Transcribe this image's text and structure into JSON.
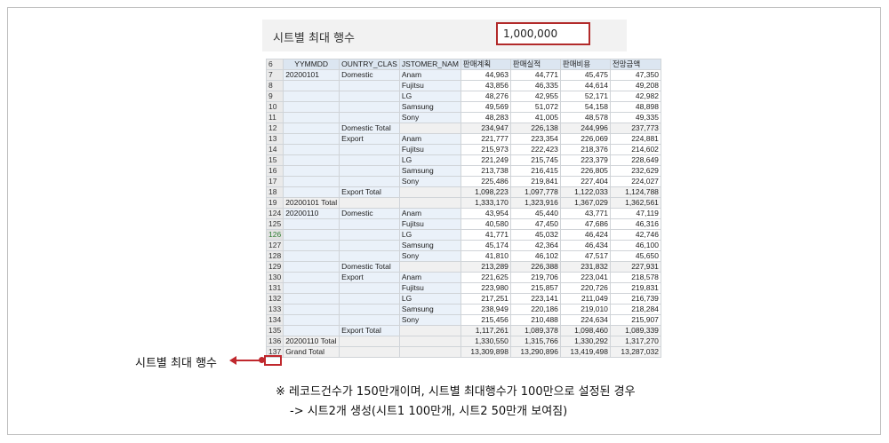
{
  "setting": {
    "label": "시트별 최대 행수",
    "value": "1,000,000"
  },
  "sheet": {
    "headers": {
      "row": "6",
      "c1": "YYMMDD",
      "c2": "OUNTRY_CLAS",
      "c3": "JSTOMER_NAM",
      "c4": "판매계획",
      "c5": "판매실적",
      "c6": "판매비용",
      "c7": "전망금액"
    },
    "rows": [
      {
        "rn": "7",
        "c1": "20200101",
        "c2": "Domestic",
        "c3": "Anam",
        "v": [
          "44,963",
          "44,771",
          "45,475",
          "47,350"
        ]
      },
      {
        "rn": "8",
        "c1": "",
        "c2": "",
        "c3": "Fujitsu",
        "v": [
          "43,856",
          "46,335",
          "44,614",
          "49,208"
        ]
      },
      {
        "rn": "9",
        "c1": "",
        "c2": "",
        "c3": "LG",
        "v": [
          "48,276",
          "42,955",
          "52,171",
          "42,982"
        ]
      },
      {
        "rn": "10",
        "c1": "",
        "c2": "",
        "c3": "Samsung",
        "v": [
          "49,569",
          "51,072",
          "54,158",
          "48,898"
        ]
      },
      {
        "rn": "11",
        "c1": "",
        "c2": "",
        "c3": "Sony",
        "v": [
          "48,283",
          "41,005",
          "48,578",
          "49,335"
        ]
      },
      {
        "rn": "12",
        "c1": "",
        "c2": "Domestic Total",
        "c3": "",
        "v": [
          "234,947",
          "226,138",
          "244,996",
          "237,773"
        ]
      },
      {
        "rn": "13",
        "c1": "",
        "c2": "Export",
        "c3": "Anam",
        "v": [
          "221,777",
          "223,354",
          "226,069",
          "224,881"
        ]
      },
      {
        "rn": "14",
        "c1": "",
        "c2": "",
        "c3": "Fujitsu",
        "v": [
          "215,973",
          "222,423",
          "218,376",
          "214,602"
        ]
      },
      {
        "rn": "15",
        "c1": "",
        "c2": "",
        "c3": "LG",
        "v": [
          "221,249",
          "215,745",
          "223,379",
          "228,649"
        ]
      },
      {
        "rn": "16",
        "c1": "",
        "c2": "",
        "c3": "Samsung",
        "v": [
          "213,738",
          "216,415",
          "226,805",
          "232,629"
        ]
      },
      {
        "rn": "17",
        "c1": "",
        "c2": "",
        "c3": "Sony",
        "v": [
          "225,486",
          "219,841",
          "227,404",
          "224,027"
        ]
      },
      {
        "rn": "18",
        "c1": "",
        "c2": "Export Total",
        "c3": "",
        "v": [
          "1,098,223",
          "1,097,778",
          "1,122,033",
          "1,124,788"
        ]
      },
      {
        "rn": "19",
        "c1": "20200101 Total",
        "c2": "",
        "c3": "",
        "v": [
          "1,333,170",
          "1,323,916",
          "1,367,029",
          "1,362,561"
        ]
      },
      {
        "rn": "124",
        "c1": "20200110",
        "c2": "Domestic",
        "c3": "Anam",
        "v": [
          "43,954",
          "45,440",
          "43,771",
          "47,119"
        ]
      },
      {
        "rn": "125",
        "c1": "",
        "c2": "",
        "c3": "Fujitsu",
        "v": [
          "40,580",
          "47,450",
          "47,686",
          "46,316"
        ]
      },
      {
        "rn": "126",
        "c1": "",
        "c2": "",
        "c3": "LG",
        "v": [
          "41,771",
          "45,032",
          "46,424",
          "42,746"
        ]
      },
      {
        "rn": "127",
        "c1": "",
        "c2": "",
        "c3": "Samsung",
        "v": [
          "45,174",
          "42,364",
          "46,434",
          "46,100"
        ]
      },
      {
        "rn": "128",
        "c1": "",
        "c2": "",
        "c3": "Sony",
        "v": [
          "41,810",
          "46,102",
          "47,517",
          "45,650"
        ]
      },
      {
        "rn": "129",
        "c1": "",
        "c2": "Domestic Total",
        "c3": "",
        "v": [
          "213,289",
          "226,388",
          "231,832",
          "227,931"
        ]
      },
      {
        "rn": "130",
        "c1": "",
        "c2": "Export",
        "c3": "Anam",
        "v": [
          "221,625",
          "219,706",
          "223,041",
          "218,578"
        ]
      },
      {
        "rn": "131",
        "c1": "",
        "c2": "",
        "c3": "Fujitsu",
        "v": [
          "223,980",
          "215,857",
          "220,726",
          "219,831"
        ]
      },
      {
        "rn": "132",
        "c1": "",
        "c2": "",
        "c3": "LG",
        "v": [
          "217,251",
          "223,141",
          "211,049",
          "216,739"
        ]
      },
      {
        "rn": "133",
        "c1": "",
        "c2": "",
        "c3": "Samsung",
        "v": [
          "238,949",
          "220,186",
          "219,010",
          "218,284"
        ]
      },
      {
        "rn": "134",
        "c1": "",
        "c2": "",
        "c3": "Sony",
        "v": [
          "215,456",
          "210,488",
          "224,634",
          "215,907"
        ]
      },
      {
        "rn": "135",
        "c1": "",
        "c2": "Export Total",
        "c3": "",
        "v": [
          "1,117,261",
          "1,089,378",
          "1,098,460",
          "1,089,339"
        ]
      },
      {
        "rn": "136",
        "c1": "20200110 Total",
        "c2": "",
        "c3": "",
        "v": [
          "1,330,550",
          "1,315,766",
          "1,330,292",
          "1,317,270"
        ]
      },
      {
        "rn": "137",
        "c1": "Grand Total",
        "c2": "",
        "c3": "",
        "v": [
          "13,309,898",
          "13,290,896",
          "13,419,498",
          "13,287,032"
        ]
      }
    ]
  },
  "annotation": {
    "label": "시트별 최대 행수"
  },
  "notes": {
    "line1": "※ 레코드건수가 150만개이며, 시트별  최대행수가 100만으로 설정된 경우",
    "line2": "-> 시트2개 생성(시트1 100만개, 시트2 50만개 보여짐)"
  },
  "colors": {
    "highlight": "#c0282d",
    "header_bg": "#dce6f1",
    "group_bg": "#eaf1f9"
  }
}
